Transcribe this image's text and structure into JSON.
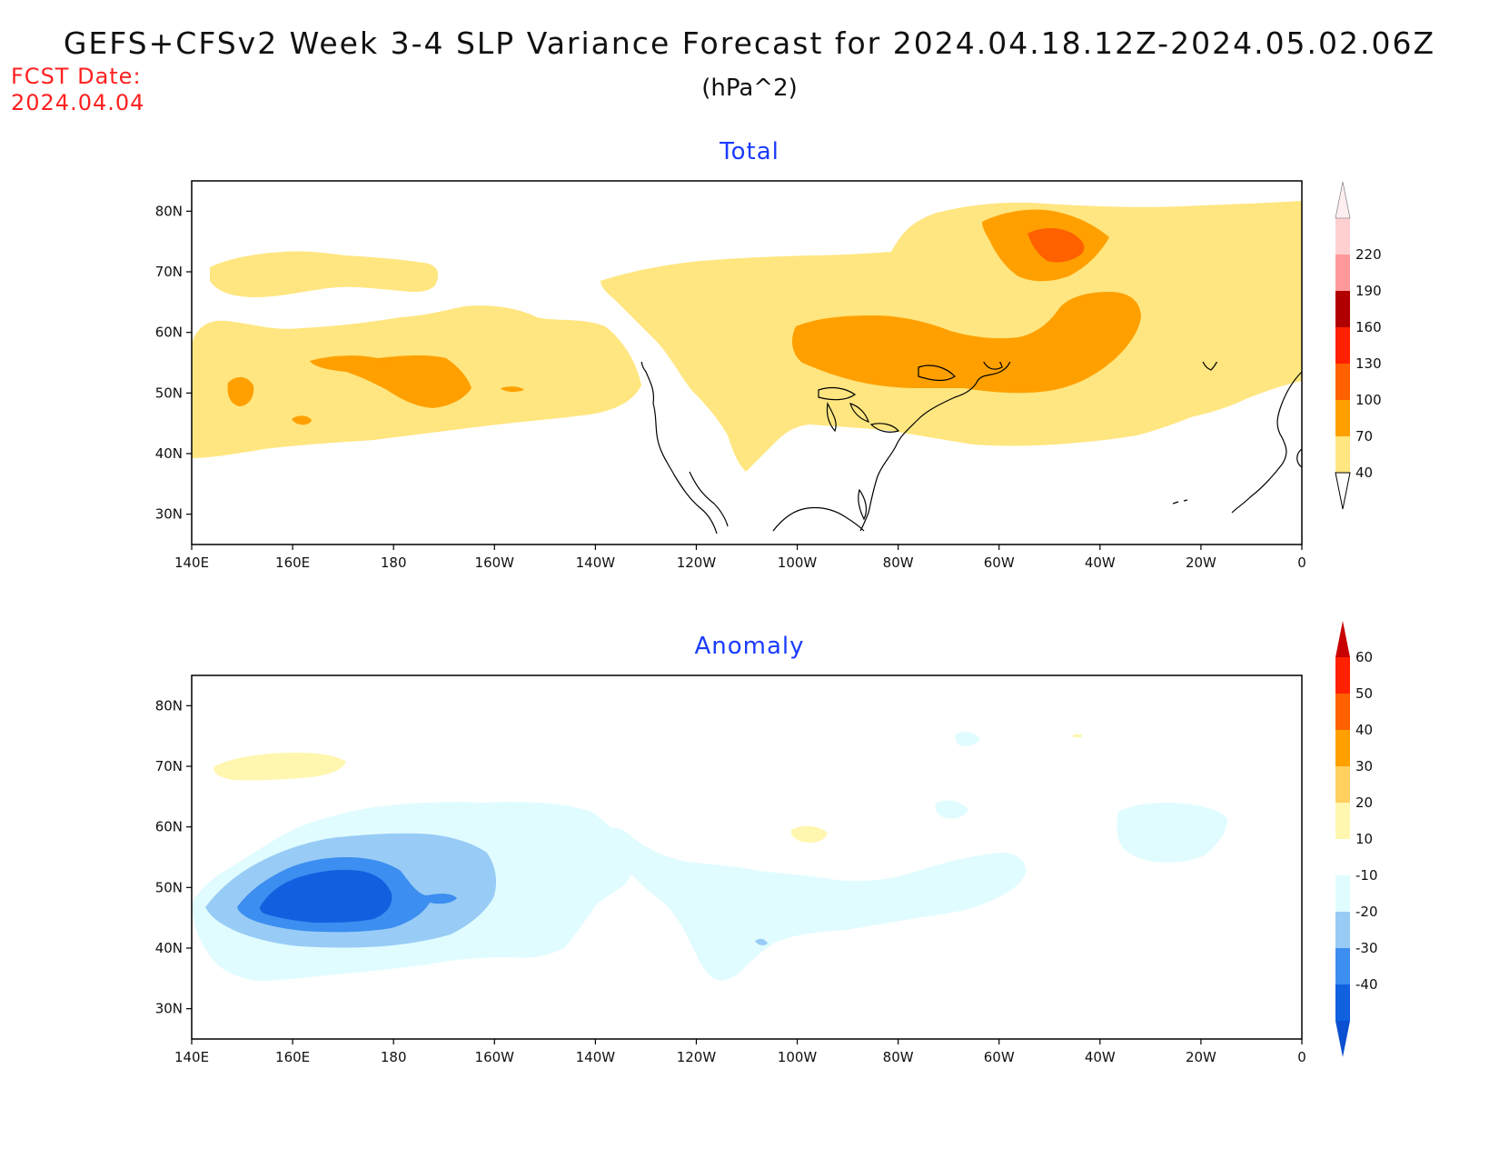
{
  "title": "GEFS+CFSv2 Week 3-4 SLP Variance Forecast for 2024.04.18.12Z-2024.05.02.06Z",
  "units": "(hPa^2)",
  "fcst_date_label": "FCST Date:",
  "fcst_date": "2024.04.04",
  "panels": [
    {
      "title": "Total",
      "lon_ticks": [
        "140E",
        "160E",
        "180",
        "160W",
        "140W",
        "120W",
        "100W",
        "80W",
        "60W",
        "40W",
        "20W",
        "0"
      ],
      "lat_ticks": [
        "80N",
        "70N",
        "60N",
        "50N",
        "40N",
        "30N"
      ],
      "colorbar": {
        "labels": [
          "40",
          "70",
          "100",
          "130",
          "160",
          "190",
          "220"
        ],
        "colors": [
          "#ffe680",
          "#ffa000",
          "#ff6000",
          "#ff2000",
          "#b00000",
          "#ff9999",
          "#ffd0d0"
        ]
      }
    },
    {
      "title": "Anomaly",
      "lon_ticks": [
        "140E",
        "160E",
        "180",
        "160W",
        "140W",
        "120W",
        "100W",
        "80W",
        "60W",
        "40W",
        "20W",
        "0"
      ],
      "lat_ticks": [
        "80N",
        "70N",
        "60N",
        "50N",
        "40N",
        "30N"
      ],
      "colorbar": {
        "labels": [
          "-40",
          "-30",
          "-20",
          "-10",
          "10",
          "20",
          "30",
          "40",
          "50",
          "60"
        ],
        "colors": [
          "#1060e0",
          "#3c8ef0",
          "#98ccf6",
          "#e0fcff",
          "#ffffff",
          "#fff6b0",
          "#ffd060",
          "#ffa000",
          "#ff6000",
          "#ff2000",
          "#c80000"
        ]
      }
    }
  ]
}
